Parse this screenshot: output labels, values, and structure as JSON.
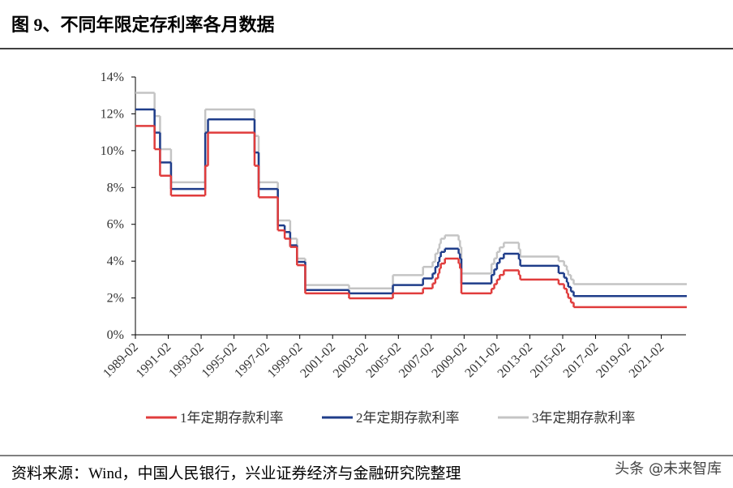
{
  "header": {
    "title": "图 9、不同年限定存利率各月数据"
  },
  "chart_data": {
    "type": "step-line",
    "x": [
      "1989-02",
      "1990-04",
      "1990-08",
      "1991-04",
      "1993-05",
      "1993-07",
      "1996-05",
      "1996-08",
      "1997-10",
      "1998-03",
      "1998-07",
      "1998-12",
      "1999-06",
      "2002-02",
      "2004-10",
      "2006-08",
      "2007-03",
      "2007-05",
      "2007-07",
      "2007-08",
      "2007-09",
      "2007-12",
      "2008-10",
      "2008-11",
      "2008-12",
      "2010-10",
      "2010-12",
      "2011-02",
      "2011-04",
      "2011-07",
      "2012-06",
      "2012-07",
      "2014-11",
      "2015-03",
      "2015-05",
      "2015-06",
      "2015-08",
      "2015-10",
      "2022-08"
    ],
    "series": [
      {
        "name": "1年定期存款利率",
        "color": "#e03c3c",
        "values": [
          11.34,
          10.08,
          8.64,
          7.56,
          9.18,
          10.98,
          9.18,
          7.47,
          5.67,
          5.22,
          4.77,
          3.78,
          2.25,
          1.98,
          2.25,
          2.52,
          2.79,
          3.06,
          3.33,
          3.6,
          3.87,
          4.14,
          3.87,
          3.6,
          2.25,
          2.5,
          2.75,
          3.0,
          3.25,
          3.5,
          3.25,
          3.0,
          2.75,
          2.5,
          2.25,
          2.0,
          1.75,
          1.5,
          1.5
        ]
      },
      {
        "name": "2年定期存款利率",
        "color": "#1f3d8a",
        "values": [
          12.24,
          10.98,
          9.36,
          7.92,
          10.98,
          11.7,
          9.9,
          7.92,
          5.94,
          5.58,
          4.86,
          3.96,
          2.43,
          2.25,
          2.7,
          3.06,
          3.33,
          3.69,
          3.96,
          4.23,
          4.5,
          4.68,
          4.41,
          4.14,
          2.79,
          3.25,
          3.55,
          3.9,
          4.15,
          4.4,
          4.1,
          3.75,
          3.35,
          3.1,
          2.85,
          2.6,
          2.35,
          2.1,
          2.1
        ]
      },
      {
        "name": "3年定期存款利率",
        "color": "#c4c4c4",
        "values": [
          13.14,
          11.88,
          10.08,
          8.28,
          12.24,
          12.24,
          10.8,
          8.28,
          6.21,
          6.21,
          5.22,
          4.14,
          2.7,
          2.52,
          3.24,
          3.69,
          3.96,
          4.41,
          4.68,
          4.95,
          5.22,
          5.4,
          5.13,
          4.77,
          3.33,
          3.85,
          4.15,
          4.5,
          4.75,
          5.0,
          4.65,
          4.25,
          4.0,
          3.75,
          3.5,
          3.25,
          3.0,
          2.75,
          2.75
        ]
      }
    ],
    "xlim": [
      "1989-02",
      "2022-08"
    ],
    "xticks": [
      "1989-02",
      "1991-02",
      "1993-02",
      "1995-02",
      "1997-02",
      "1999-02",
      "2001-02",
      "2003-02",
      "2005-02",
      "2007-02",
      "2009-02",
      "2011-02",
      "2013-02",
      "2015-02",
      "2017-02",
      "2019-02",
      "2021-02"
    ],
    "ylim": [
      0,
      14
    ],
    "yticks": [
      {
        "value": 0,
        "label": "0%"
      },
      {
        "value": 2,
        "label": "2%"
      },
      {
        "value": 4,
        "label": "4%"
      },
      {
        "value": 6,
        "label": "6%"
      },
      {
        "value": 8,
        "label": "8%"
      },
      {
        "value": 10,
        "label": "10%"
      },
      {
        "value": 12,
        "label": "12%"
      },
      {
        "value": 14,
        "label": "14%"
      }
    ],
    "legend": "bottom"
  },
  "footer": {
    "source": "资料来源：Wind，中国人民银行，兴业证券经济与金融研究院整理",
    "watermark": "头条 @未来智库"
  }
}
